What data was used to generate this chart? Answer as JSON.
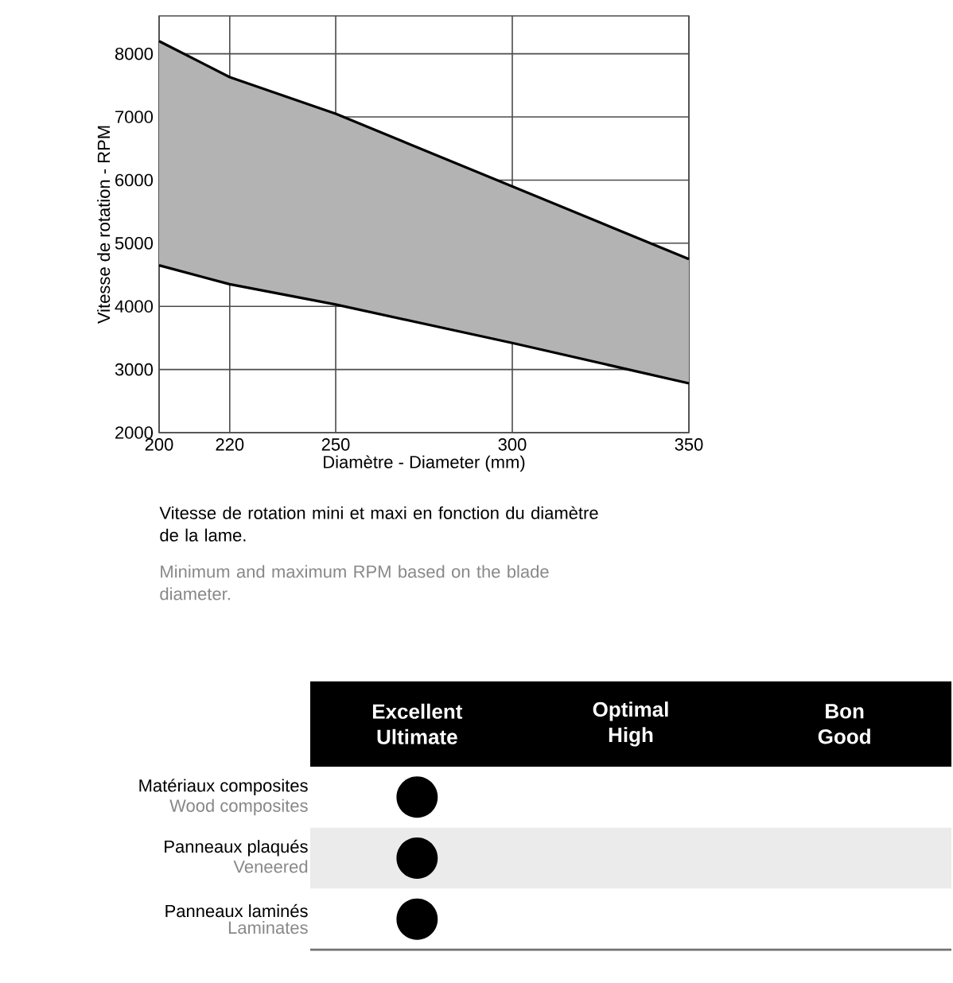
{
  "chart_data": [
    {
      "type": "line",
      "x": [
        200,
        220,
        250,
        300,
        350
      ],
      "series": [
        {
          "color": "#000000",
          "values": [
            8200,
            7630,
            7050,
            5900,
            4750
          ],
          "lower": [
            4650,
            4350,
            4030,
            3420,
            2780
          ],
          "upper": [
            8200,
            7630,
            7050,
            5900,
            4750
          ]
        },
        {
          "color": "#000000",
          "values": [
            4650,
            4350,
            4030,
            3420,
            2780
          ]
        }
      ],
      "xlim": [
        200,
        350
      ],
      "ylim": [
        2000,
        8600
      ],
      "xticks": [
        200,
        220,
        250,
        300,
        350
      ],
      "yticks": [
        2000,
        3000,
        4000,
        5000,
        6000,
        7000,
        8000
      ],
      "xlabel": "Diamètre - Diameter (mm)",
      "ylabel": "Vitesse de rotation - RPM",
      "grid": true,
      "annotations": [
        "Vitesse de rotation mini et maxi en fonction du diamètre de la lame.",
        "Minimum and maximum RPM based on the blade diameter."
      ]
    },
    {
      "type": "heatmap",
      "categories": [
        "Excellent Ultimate",
        "Optimal High",
        "Bon Good"
      ],
      "y_categories": [
        "Matériaux composites",
        "Panneaux plaqués",
        "Panneaux laminés"
      ],
      "y2_categories": [
        "Wood composites",
        "Veneered",
        "Laminates"
      ],
      "cells": [
        [
          null,
          null,
          null
        ],
        [
          null,
          null,
          null
        ],
        [
          null,
          null,
          null
        ]
      ],
      "cell_labels": [
        [
          "●",
          null,
          null
        ],
        [
          "●",
          null,
          null
        ],
        [
          "●",
          null,
          null
        ]
      ]
    }
  ]
}
